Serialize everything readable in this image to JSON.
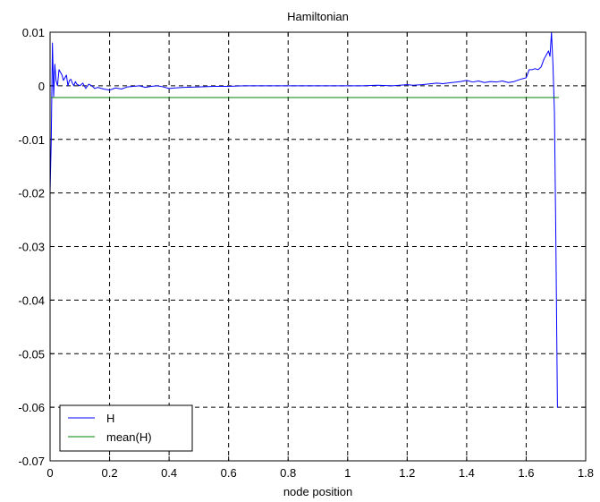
{
  "chart_data": {
    "type": "line",
    "title": "Hamiltonian",
    "xlabel": "node position",
    "ylabel": "",
    "xlim": [
      0,
      1.8
    ],
    "ylim": [
      -0.07,
      0.01
    ],
    "x_ticks": [
      0,
      0.2,
      0.4,
      0.6,
      0.8,
      1,
      1.2,
      1.4,
      1.6,
      1.8
    ],
    "y_ticks": [
      0.01,
      0,
      -0.01,
      -0.02,
      -0.03,
      -0.04,
      -0.05,
      -0.06,
      -0.07
    ],
    "x_tick_labels": [
      "0",
      "0.2",
      "0.4",
      "0.6",
      "0.8",
      "1",
      "1.2",
      "1.4",
      "1.6",
      "1.8"
    ],
    "y_tick_labels": [
      "0.01",
      "0",
      "-0.01",
      "-0.02",
      "-0.03",
      "-0.04",
      "-0.05",
      "-0.06",
      "-0.07"
    ],
    "grid": true,
    "legend_position": "bottom-left",
    "series": [
      {
        "name": "H",
        "color": "#0000ff",
        "x": [
          0,
          0.004,
          0.008,
          0.012,
          0.016,
          0.02,
          0.025,
          0.03,
          0.035,
          0.04,
          0.045,
          0.05,
          0.055,
          0.06,
          0.065,
          0.07,
          0.075,
          0.08,
          0.085,
          0.09,
          0.1,
          0.11,
          0.12,
          0.13,
          0.14,
          0.15,
          0.16,
          0.18,
          0.2,
          0.22,
          0.24,
          0.26,
          0.28,
          0.3,
          0.32,
          0.34,
          0.36,
          0.38,
          0.4,
          0.42,
          0.45,
          0.5,
          0.55,
          0.6,
          0.65,
          0.7,
          0.75,
          0.8,
          0.85,
          0.9,
          0.95,
          1.0,
          1.05,
          1.1,
          1.15,
          1.2,
          1.22,
          1.25,
          1.3,
          1.32,
          1.35,
          1.38,
          1.4,
          1.42,
          1.44,
          1.46,
          1.48,
          1.5,
          1.52,
          1.54,
          1.56,
          1.58,
          1.6,
          1.61,
          1.62,
          1.63,
          1.64,
          1.65,
          1.66,
          1.67,
          1.675,
          1.68,
          1.685,
          1.69,
          1.695,
          1.7,
          1.705,
          1.708
        ],
        "values": [
          -0.02,
          -0.01,
          0.008,
          -0.002,
          0.004,
          0.001,
          0.0,
          0.003,
          0.0025,
          0.002,
          0.001,
          0.0015,
          0.002,
          0.0,
          0.001,
          0.0012,
          0.0005,
          0.0,
          0.0008,
          0.0003,
          0.0,
          0.0005,
          -0.0005,
          0.0003,
          0.0,
          -0.0005,
          -0.0003,
          -0.0006,
          -0.0008,
          -0.0004,
          -0.0006,
          -0.0002,
          -0.0001,
          0.0,
          -0.0003,
          -0.0001,
          0.0,
          -0.0002,
          -0.0005,
          -0.0004,
          -0.0003,
          -0.0002,
          -0.0001,
          -0.0001,
          0.0,
          0.0,
          0.0,
          0.0,
          0.0,
          0.0,
          0.0,
          0.0,
          0.0,
          0.0001,
          0.0,
          0.0002,
          0.0001,
          0.0002,
          0.0005,
          0.0004,
          0.0006,
          0.0008,
          0.001,
          0.0007,
          0.0009,
          0.0006,
          0.0008,
          0.0007,
          0.0009,
          0.0006,
          0.0008,
          0.0012,
          0.0015,
          0.003,
          0.003,
          0.0032,
          0.003,
          0.0035,
          0.005,
          0.006,
          0.0065,
          0.0055,
          0.01,
          0.004,
          -0.005,
          -0.03,
          -0.06,
          -0.06
        ]
      },
      {
        "name": "mean(H)",
        "color": "#008000",
        "x": [
          0.003,
          1.71
        ],
        "values": [
          -0.0022,
          -0.0022
        ]
      }
    ]
  }
}
